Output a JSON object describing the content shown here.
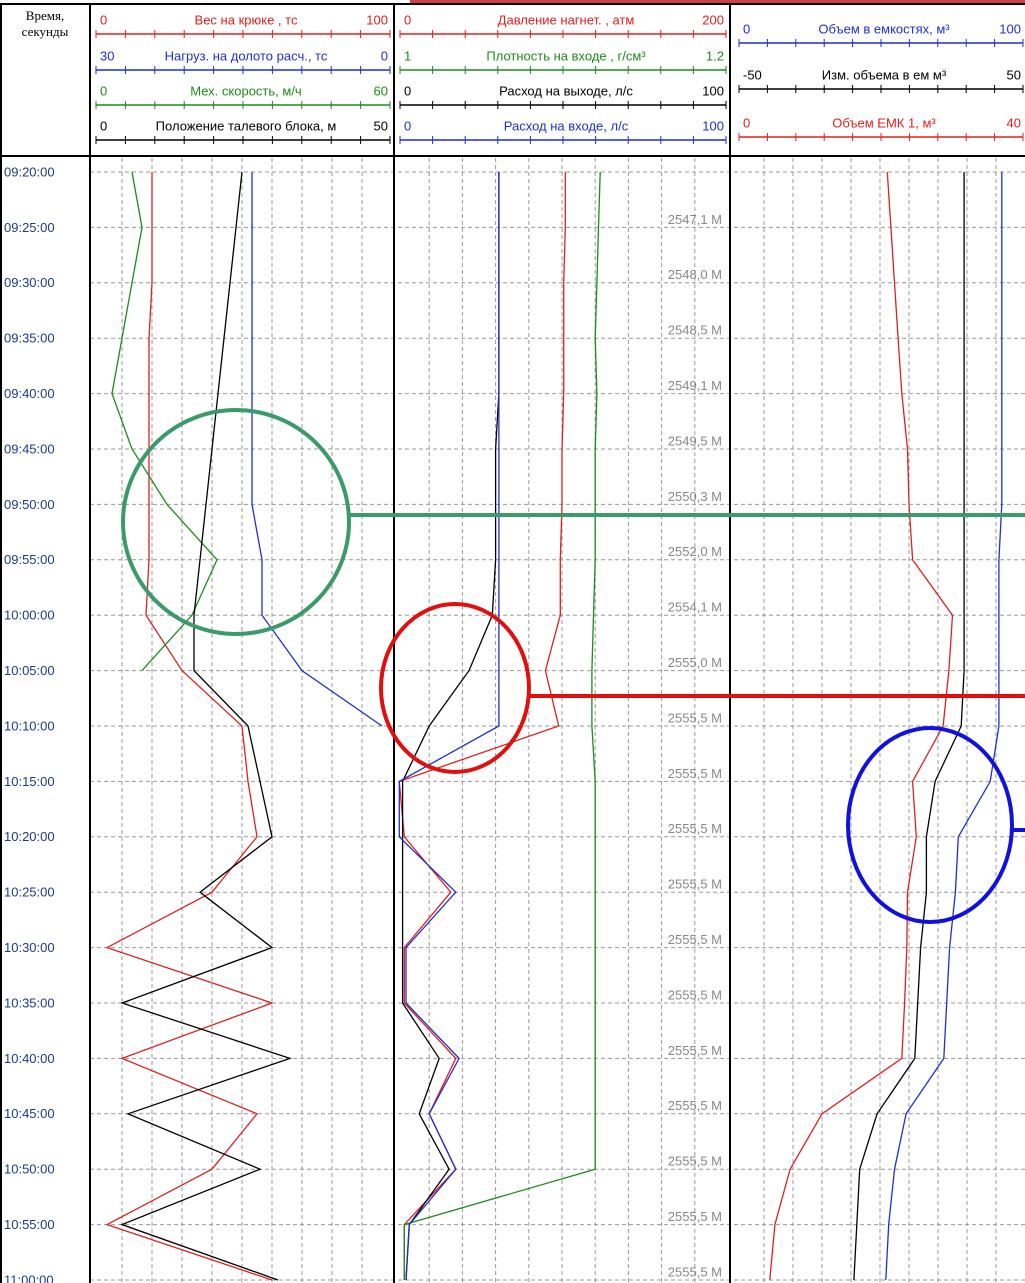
{
  "chart_data": {
    "type": "line",
    "time_axis_title": [
      "Время,",
      "секунды"
    ],
    "x": [
      "09:20:00",
      "09:25:00",
      "09:30:00",
      "09:35:00",
      "09:40:00",
      "09:45:00",
      "09:50:00",
      "09:55:00",
      "10:00:00",
      "10:05:00",
      "10:10:00",
      "10:15:00",
      "10:20:00",
      "10:25:00",
      "10:30:00",
      "10:35:00",
      "10:40:00",
      "10:45:00",
      "10:50:00",
      "10:55:00",
      "11:00:00"
    ],
    "grid": true,
    "tracks": [
      {
        "series": [
          {
            "name": "Вес на крюке , тс",
            "color": "#e02020",
            "xlim": [
              0,
              100
            ],
            "values": [
              20,
              20,
              20,
              19,
              19,
              19,
              19,
              19,
              18,
              30,
              50,
              52,
              55,
              40,
              5,
              60,
              10,
              55,
              40,
              5,
              60
            ]
          },
          {
            "name": "Нагруз. на долото расч., тс",
            "color": "#1f2fd0",
            "xlim": [
              30,
              0
            ],
            "values": [
              14,
              14,
              14,
              14,
              14,
              14,
              14,
              13,
              13,
              9,
              1,
              null,
              null,
              null,
              null,
              null,
              null,
              null,
              null,
              null,
              null
            ]
          },
          {
            "name": "Мех. скорость, м/ч",
            "color": "#1e8a1e",
            "xlim": [
              0,
              60
            ],
            "values": [
              8,
              10,
              8,
              6,
              4,
              8,
              15,
              25,
              20,
              10,
              null,
              null,
              null,
              null,
              null,
              null,
              null,
              null,
              null,
              null,
              null
            ]
          },
          {
            "name": "Положение талевого блока, м",
            "color": "#000000",
            "xlim": [
              0,
              50
            ],
            "values": [
              25,
              24,
              23,
              22,
              21,
              20,
              19,
              18,
              17,
              17,
              26,
              28,
              30,
              18,
              30,
              5,
              33,
              6,
              28,
              5,
              31
            ]
          }
        ]
      },
      {
        "series": [
          {
            "name": "Давление нагнет. , атм",
            "color": "#e02020",
            "xlim": [
              0,
              200
            ],
            "values": [
              102,
              102,
              101,
              101,
              101,
              100,
              100,
              99,
              99,
              90,
              98,
              2,
              5,
              33,
              5,
              5,
              36,
              20,
              36,
              5,
              5
            ]
          },
          {
            "name": "Плотность на входе , г/см³",
            "color": "#1e8a1e",
            "xlim": [
              1,
              1.2
            ],
            "values": [
              1.123,
              1.122,
              1.121,
              1.12,
              1.121,
              1.12,
              1.12,
              1.12,
              1.119,
              1.118,
              1.118,
              1.12,
              1.12,
              1.12,
              1.12,
              1.12,
              1.12,
              1.12,
              1.12,
              1.005,
              1.005
            ]
          },
          {
            "name": "Расход на выходе, л/с",
            "color": "#000000",
            "xlim": [
              0,
              100
            ],
            "values": [
              31,
              31,
              31,
              31,
              31,
              30,
              30,
              30,
              29,
              22,
              10,
              2,
              2,
              2,
              2,
              2,
              13,
              7,
              16,
              4,
              3
            ]
          },
          {
            "name": "Расход на входе, л/с",
            "color": "#1f2fd0",
            "xlim": [
              0,
              100
            ],
            "values": [
              31,
              31,
              31,
              31,
              31,
              31,
              31,
              31,
              31,
              31,
              31,
              1,
              1,
              18,
              3,
              3,
              19,
              10,
              18,
              4,
              3
            ]
          }
        ]
      },
      {
        "series": [
          {
            "name": "Объем в емкостях, м³",
            "color": "#1f2fd0",
            "xlim": [
              0,
              100
            ],
            "values": [
              92,
              92,
              92,
              92,
              92,
              92,
              92,
              91,
              91,
              91,
              91,
              88,
              77,
              76,
              74,
              73,
              72,
              59,
              55,
              53,
              52
            ]
          },
          {
            "name": "Изм. объема в ем м³",
            "color": "#000000",
            "xlim": [
              -50,
              50
            ],
            "values": [
              29,
              29,
              29,
              29,
              29,
              29,
              29,
              29,
              29,
              29,
              28,
              19,
              16,
              16,
              14,
              13,
              12,
              -1,
              -7,
              -8,
              -9
            ]
          },
          {
            "name": "Объем ЕМК 1, м³",
            "color": "#e02020",
            "xlim": [
              0,
              40
            ],
            "values": [
              21,
              21.5,
              22,
              22.5,
              23,
              23.8,
              24,
              24.5,
              30,
              29.5,
              28.7,
              24.5,
              25,
              23.8,
              23.7,
              23.4,
              23,
              12,
              7.6,
              5.5,
              4.8
            ]
          }
        ]
      }
    ],
    "depth_labels": [
      "2547,1 M",
      "2548,0 M",
      "2548,5 M",
      "2549,1 M",
      "2549,5 M",
      "2550,3 M",
      "2552,0 M",
      "2554,1 M",
      "2555,0 M",
      "2555,5 M",
      "2555,5 M",
      "2555,5 M",
      "2555,5 M",
      "2555,5 M",
      "2555,5 M",
      "2555,5 M",
      "2555,5 M",
      "2555,5 M",
      "2555,5 M",
      "2555,5 M"
    ]
  }
}
